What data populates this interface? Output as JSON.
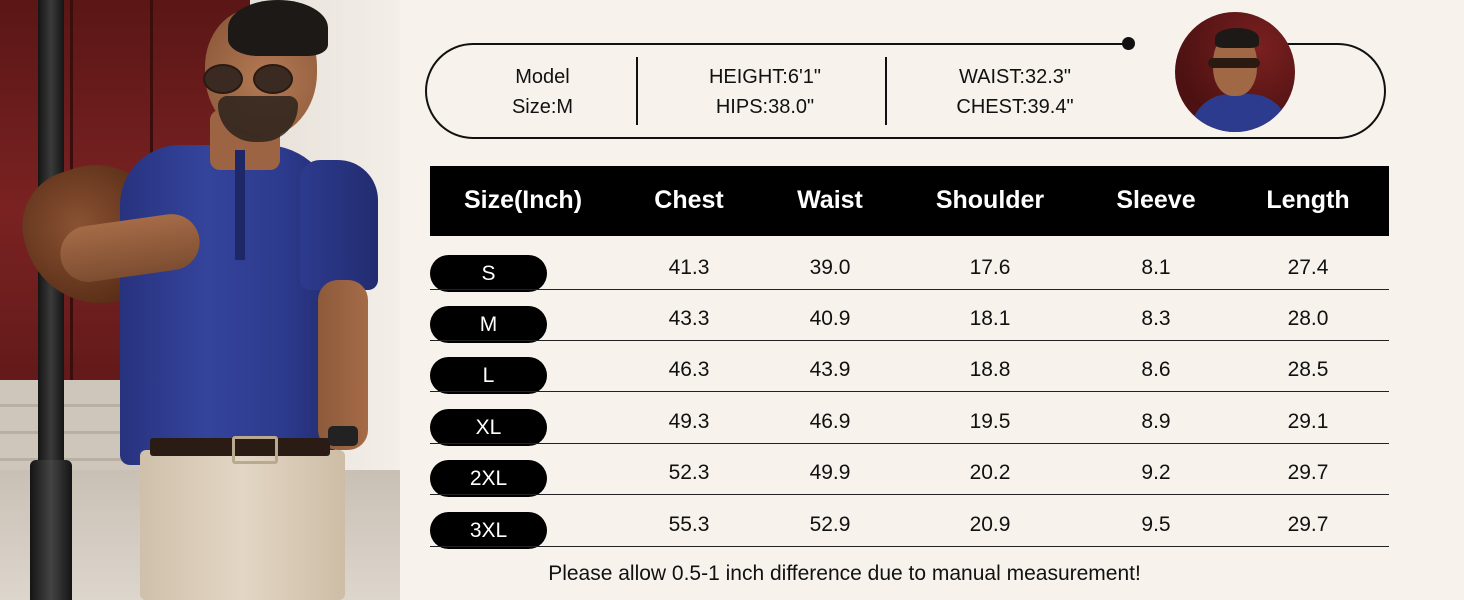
{
  "model_info": {
    "label_line1": "Model",
    "label_line2": "Size:M",
    "height": "HEIGHT:6'1\"",
    "hips": "HIPS:38.0\"",
    "waist": "WAIST:32.3\"",
    "chest": "CHEST:39.4\""
  },
  "table": {
    "headers": [
      "Size(Inch)",
      "Chest",
      "Waist",
      "Shoulder",
      "Sleeve",
      "Length"
    ],
    "rows": [
      {
        "size": "S",
        "values": [
          "41.3",
          "39.0",
          "17.6",
          "8.1",
          "27.4"
        ]
      },
      {
        "size": "M",
        "values": [
          "43.3",
          "40.9",
          "18.1",
          "8.3",
          "28.0"
        ]
      },
      {
        "size": "L",
        "values": [
          "46.3",
          "43.9",
          "18.8",
          "8.6",
          "28.5"
        ]
      },
      {
        "size": "XL",
        "values": [
          "49.3",
          "46.9",
          "19.5",
          "8.9",
          "29.1"
        ]
      },
      {
        "size": "2XL",
        "values": [
          "52.3",
          "49.9",
          "20.2",
          "9.2",
          "29.7"
        ]
      },
      {
        "size": "3XL",
        "values": [
          "55.3",
          "52.9",
          "20.9",
          "9.5",
          "29.7"
        ]
      }
    ]
  },
  "note": "Please allow 0.5-1 inch difference due to manual measurement!",
  "colors": {
    "background": "#f7f2ec",
    "header_bg": "#000000",
    "shirt": "#2d3b8e"
  }
}
